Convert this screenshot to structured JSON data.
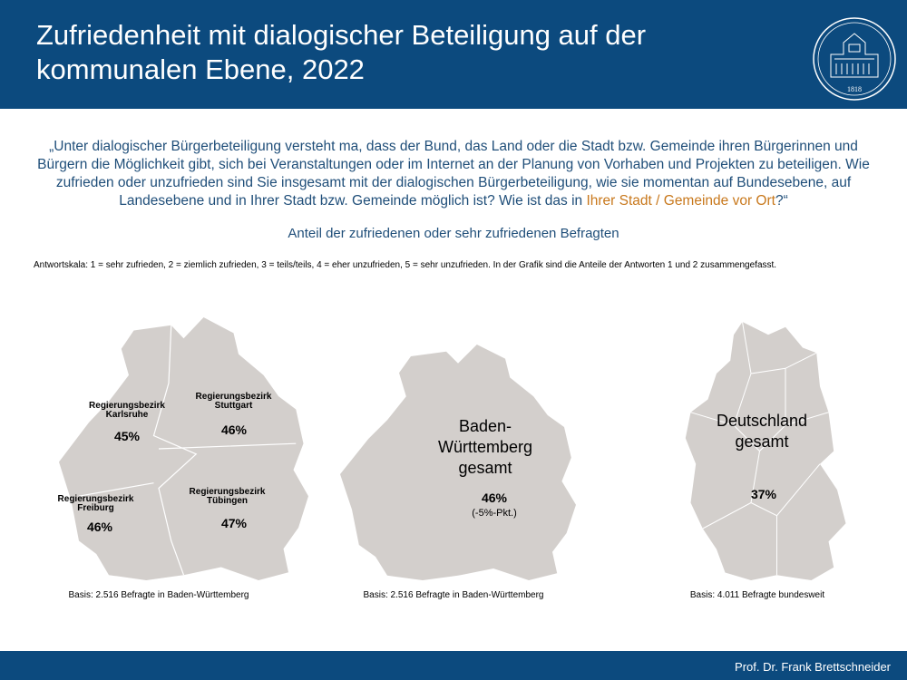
{
  "header": {
    "title": "Zufriedenheit mit dialogischer Beteiligung auf der kommunalen Ebene, 2022",
    "logo_year": "1818"
  },
  "question": {
    "text": "„Unter dialogischer Bürgerbeteiligung versteht ma, dass der Bund, das Land oder die Stadt bzw. Gemeinde ihren Bürgerinnen und Bürgern die Möglichkeit gibt, sich bei Veranstaltungen oder im Internet an der Planung von Vorhaben und Projekten zu beteiligen. Wie zufrieden oder unzufrieden sind Sie insgesamt mit der dialogischen Bürgerbeteiligung, wie sie momentan auf Bundesebene, auf Landesebene und in Ihrer Stadt bzw. Gemeinde möglich ist? Wie ist das in ",
    "highlight": "Ihrer Stadt / Gemeinde vor Ort",
    "end": "?“"
  },
  "subtitle": "Anteil der zufriedenen oder sehr zufriedenen Befragten",
  "scale_note": "Antwortskala: 1 = sehr zufrieden, 2 = ziemlich zufrieden, 3 = teils/teils, 4 = eher unzufrieden, 5 = sehr unzufrieden. In der Grafik sind die Anteile der Antworten 1 und 2 zusammengefasst.",
  "maps": [
    {
      "regions": [
        {
          "label": "Regierungsbezirk Karlsruhe",
          "value": "45%"
        },
        {
          "label": "Regierungsbezirk Stuttgart",
          "value": "46%"
        },
        {
          "label": "Regierungsbezirk Freiburg",
          "value": "46%"
        },
        {
          "label": "Regierungsbezirk Tübingen",
          "value": "47%"
        }
      ],
      "basis": "Basis: 2.516 Befragte in Baden-Württemberg"
    },
    {
      "label": "Baden-Württemberg gesamt",
      "value": "46%",
      "change": "(-5%-Pkt.)",
      "basis": "Basis: 2.516 Befragte in Baden-Württemberg"
    },
    {
      "label": "Deutschland gesamt",
      "value": "37%",
      "basis": "Basis: 4.011 Befragte bundesweit"
    }
  ],
  "footer": "Prof. Dr. Frank Brettschneider"
}
